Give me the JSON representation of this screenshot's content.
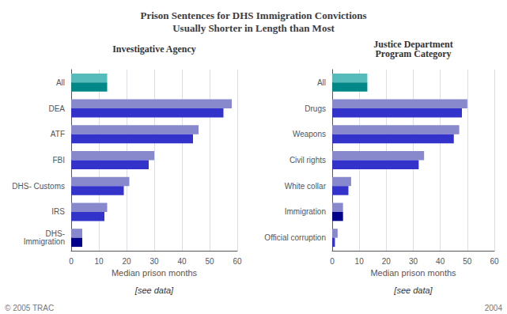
{
  "title": "Prison Sentences for DHS Immigration Convictions\nUsually Shorter in Length than Most",
  "annotations": [
    "© 2005 TRAC",
    "2004"
  ],
  "chart_data": [
    {
      "type": "bar",
      "orientation": "horizontal",
      "subtitle": "Investigative Agency",
      "categories": [
        "All",
        "DEA",
        "ATF",
        "FBI",
        "DHS- Customs",
        "IRS",
        "DHS-\nImmigration"
      ],
      "series": [
        {
          "values": [
            13,
            58,
            46,
            30,
            21,
            13,
            4
          ],
          "colors": [
            "#55bbbb",
            "#8888cc",
            "#8888cc",
            "#8888cc",
            "#8888cc",
            "#8888cc",
            "#8888cc"
          ]
        },
        {
          "values": [
            13,
            55,
            44,
            28,
            19,
            12,
            4
          ],
          "colors": [
            "#008888",
            "#3333cc",
            "#3333cc",
            "#3333cc",
            "#3333cc",
            "#3333cc",
            "#00008b"
          ]
        }
      ],
      "xlabel": "Median prison months",
      "xlim": [
        0,
        60
      ],
      "xticks": [
        0,
        10,
        20,
        30,
        40,
        50,
        60
      ],
      "grid": true,
      "annotations": [
        "[see data]"
      ]
    },
    {
      "type": "bar",
      "orientation": "horizontal",
      "subtitle": "Justice Department\nProgram Category",
      "categories": [
        "All",
        "Drugs",
        "Weapons",
        "Civil rights",
        "White collar",
        "Immigration",
        "Official corruption"
      ],
      "series": [
        {
          "values": [
            13,
            50,
            47,
            34,
            7,
            4,
            2
          ],
          "colors": [
            "#55bbbb",
            "#8888cc",
            "#8888cc",
            "#8888cc",
            "#8888cc",
            "#8888cc",
            "#8888cc"
          ]
        },
        {
          "values": [
            13,
            48,
            45,
            32,
            6,
            4,
            1
          ],
          "colors": [
            "#008888",
            "#3333cc",
            "#3333cc",
            "#3333cc",
            "#3333cc",
            "#00008b",
            "#3333cc"
          ]
        }
      ],
      "xlabel": "Median prison months",
      "xlim": [
        0,
        60
      ],
      "xticks": [
        0,
        10,
        20,
        30,
        40,
        50,
        60
      ],
      "grid": true,
      "annotations": [
        "[see data]"
      ]
    }
  ]
}
